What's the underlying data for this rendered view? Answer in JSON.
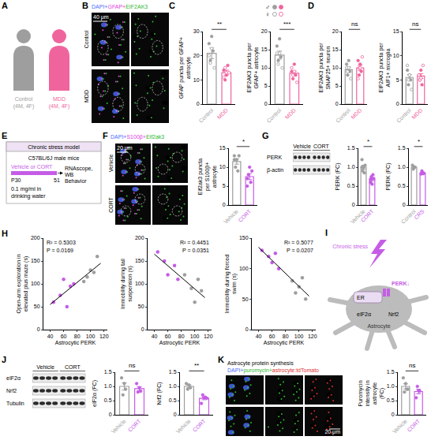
{
  "chart_data": [
    {
      "panel": "C",
      "type": "bar",
      "categories": [
        "Control",
        "MDD"
      ],
      "colors": [
        "#9e9e9e",
        "#f0649e"
      ],
      "values": [
        21,
        13
      ],
      "errors": [
        2.2,
        1.0
      ],
      "points": [
        {
          "male": [
            25,
            18,
            28,
            22
          ],
          "female": [
            15,
            20,
            17,
            23
          ]
        },
        {
          "male": [
            14,
            10,
            12,
            16
          ],
          "female": [
            13,
            11,
            15,
            13
          ]
        }
      ],
      "ylabel": "GFAP puncta per GFAP+ astrocyte",
      "ylim": [
        0,
        30
      ],
      "yticks": [
        0,
        10,
        20,
        30
      ],
      "significance": "**"
    },
    {
      "panel": "C",
      "type": "bar",
      "categories": [
        "Control",
        "MDD"
      ],
      "colors": [
        "#9e9e9e",
        "#f0649e"
      ],
      "values": [
        13.5,
        8.5
      ],
      "errors": [
        1.1,
        0.6
      ],
      "points": [
        {
          "male": [
            16,
            12,
            18,
            13
          ],
          "female": [
            10,
            14,
            11,
            14
          ]
        },
        {
          "male": [
            9,
            7,
            11,
            8
          ],
          "female": [
            6,
            10,
            8,
            9
          ]
        }
      ],
      "ylabel": "EIF2AK3 puncta per GFAP+ astrocyte",
      "ylim": [
        0,
        20
      ],
      "yticks": [
        0,
        5,
        10,
        15,
        20
      ],
      "significance": "***"
    },
    {
      "panel": "D",
      "type": "bar",
      "categories": [
        "Control",
        "MDD"
      ],
      "colors": [
        "#9e9e9e",
        "#f0649e"
      ],
      "values": [
        9.5,
        10
      ],
      "errors": [
        0.7,
        0.7
      ],
      "points": [
        {
          "male": [
            11,
            8,
            12,
            9
          ],
          "female": [
            7,
            10,
            9,
            10
          ]
        },
        {
          "male": [
            12,
            8,
            11,
            9
          ],
          "female": [
            13,
            7,
            10,
            10
          ]
        }
      ],
      "ylabel": "EIF2AK3 puncta per SNAP25+ neuron",
      "ylim": [
        0,
        20
      ],
      "yticks": [
        0,
        5,
        10,
        15,
        20
      ],
      "significance": "ns"
    },
    {
      "panel": "D",
      "type": "bar",
      "categories": [
        "Control",
        "MDD"
      ],
      "colors": [
        "#9e9e9e",
        "#f0649e"
      ],
      "values": [
        5.5,
        5.8
      ],
      "errors": [
        0.6,
        0.5
      ],
      "points": [
        {
          "male": [
            7,
            4,
            6,
            5
          ],
          "female": [
            3,
            8,
            5,
            6
          ]
        },
        {
          "male": [
            6,
            5,
            7,
            4
          ],
          "female": [
            8,
            6,
            5,
            5.4
          ]
        }
      ],
      "ylabel": "EIF2AK3 puncta per AIF1+ microglia",
      "ylim": [
        0,
        15
      ],
      "yticks": [
        0,
        5,
        10,
        15
      ],
      "significance": "ns"
    },
    {
      "panel": "F",
      "type": "bar",
      "categories": [
        "Vehicle",
        "CORT"
      ],
      "colors": [
        "#9e9e9e",
        "#c55ce6"
      ],
      "values": [
        11.5,
        7.5
      ],
      "errors": [
        0.7,
        0.8
      ],
      "points": [
        [
          13,
          10,
          12,
          9,
          13,
          12
        ],
        [
          5,
          8,
          10,
          6,
          9,
          7
        ]
      ],
      "ylabel": "Eif2ak3 puncta per S100β+ astrocyte",
      "ylim": [
        0,
        15
      ],
      "yticks": [
        0,
        5,
        10,
        15
      ],
      "significance": "*"
    },
    {
      "panel": "G",
      "type": "bar",
      "categories": [
        "Vehicle",
        "CORT"
      ],
      "colors": [
        "#9e9e9e",
        "#c55ce6"
      ],
      "values": [
        1.0,
        0.68
      ],
      "errors": [
        0.05,
        0.04
      ],
      "points": [
        [
          1.2,
          0.9,
          1.0,
          0.85,
          1.05,
          1.0
        ],
        [
          0.6,
          0.75,
          0.55,
          0.8,
          0.7,
          0.68
        ]
      ],
      "ylabel": "PERK (FC)",
      "ylim": [
        0,
        1.5
      ],
      "yticks": [
        0,
        0.5,
        {
          "value": 1,
          "label": "1.0"
        },
        1.5
      ],
      "significance": "*"
    },
    {
      "panel": "G",
      "type": "bar",
      "categories": [
        "Control",
        "CRS"
      ],
      "colors": [
        "#9e9e9e",
        "#c55ce6"
      ],
      "values": [
        1.0,
        0.85
      ],
      "errors": [
        0.02,
        0.02
      ],
      "points": [
        [
          1.05,
          0.95,
          1.0,
          1.0
        ],
        [
          0.82,
          0.9,
          0.85,
          0.83
        ]
      ],
      "ylabel": "PERK (FC)",
      "ylim": [
        0,
        1.5
      ],
      "yticks": [
        0,
        0.5,
        {
          "value": 1,
          "label": "1.0"
        },
        1.5
      ],
      "significance": "*"
    },
    {
      "panel": "H",
      "type": "scatter",
      "xlabel": "Astrocytic PERK",
      "ylabel": "Open-arm exploration in elevated plus maze (s)",
      "xlim": [
        30,
        125
      ],
      "xticks": [
        40,
        60,
        80,
        100,
        120
      ],
      "ylim": [
        0,
        200
      ],
      "yticks": [
        0,
        50,
        100,
        150,
        200
      ],
      "groups": [
        {
          "color": "#c55ce6",
          "x": [
            45,
            55,
            60,
            65,
            70,
            75
          ],
          "y": [
            60,
            75,
            110,
            50,
            95,
            100
          ]
        },
        {
          "color": "#9e9e9e",
          "x": [
            90,
            95,
            100,
            105,
            110
          ],
          "y": [
            105,
            115,
            130,
            125,
            160
          ]
        }
      ],
      "fit": {
        "x": [
          40,
          115
        ],
        "y": [
          55,
          145
        ]
      },
      "annotations": [
        "R² = 0.5303",
        "P = 0.0169"
      ]
    },
    {
      "panel": "H",
      "type": "scatter",
      "xlabel": "Astrocytic PERK",
      "ylabel": "Immobility during tail suspension (s)",
      "xlim": [
        30,
        125
      ],
      "xticks": [
        40,
        60,
        80,
        100,
        120
      ],
      "ylim": [
        0,
        200
      ],
      "yticks": [
        0,
        50,
        100,
        150,
        200
      ],
      "groups": [
        {
          "color": "#c55ce6",
          "x": [
            45,
            55,
            60,
            70,
            75
          ],
          "y": [
            170,
            150,
            120,
            140,
            110
          ]
        },
        {
          "color": "#9e9e9e",
          "x": [
            85,
            95,
            100,
            105,
            110
          ],
          "y": [
            120,
            90,
            60,
            110,
            85
          ]
        }
      ],
      "fit": {
        "x": [
          40,
          115
        ],
        "y": [
          165,
          70
        ]
      },
      "annotations": [
        "R² = 0.4451",
        "P = 0.0351"
      ]
    },
    {
      "panel": "H",
      "type": "scatter",
      "xlabel": "Astrocytic PERK",
      "ylabel": "Immobility during forced swim (s)",
      "xlim": [
        30,
        125
      ],
      "xticks": [
        40,
        60,
        80,
        100,
        120
      ],
      "ylim": [
        0,
        150
      ],
      "yticks": [
        0,
        50,
        100,
        150
      ],
      "groups": [
        {
          "color": "#c55ce6",
          "x": [
            45,
            55,
            60,
            65,
            70
          ],
          "y": [
            130,
            120,
            110,
            125,
            100
          ]
        },
        {
          "color": "#9e9e9e",
          "x": [
            90,
            95,
            100,
            105,
            110
          ],
          "y": [
            80,
            60,
            70,
            85,
            50
          ]
        }
      ],
      "fit": {
        "x": [
          40,
          115
        ],
        "y": [
          135,
          55
        ]
      },
      "annotations": [
        "R² = 0.5077",
        "P = 0.0207"
      ]
    },
    {
      "panel": "J",
      "type": "bar",
      "categories": [
        "Vehicle",
        "CORT"
      ],
      "colors": [
        "#9e9e9e",
        "#c55ce6"
      ],
      "values": [
        1.0,
        0.92
      ],
      "errors": [
        0.13,
        0.07
      ],
      "points": [
        [
          1.3,
          0.7,
          1.1,
          0.9
        ],
        [
          1.1,
          0.8,
          0.95,
          0.83
        ]
      ],
      "ylabel": "eIF2α (FC)",
      "ylim": [
        0,
        1.5
      ],
      "yticks": [
        0,
        0.5,
        {
          "value": 1,
          "label": "1.0"
        },
        1.5
      ],
      "significance": "ns"
    },
    {
      "panel": "J",
      "type": "bar",
      "categories": [
        "Vehicle",
        "CORT"
      ],
      "colors": [
        "#9e9e9e",
        "#c55ce6"
      ],
      "values": [
        1.0,
        0.58
      ],
      "errors": [
        0.05,
        0.05
      ],
      "points": [
        [
          1.1,
          0.9,
          1.05,
          0.95
        ],
        [
          0.4,
          0.7,
          0.6,
          0.62,
          0.58
        ]
      ],
      "ylabel": "Nrf2 (FC)",
      "ylim": [
        0,
        1.5
      ],
      "yticks": [
        0,
        0.5,
        {
          "value": 1,
          "label": "1.0"
        },
        1.5
      ],
      "significance": "**"
    },
    {
      "panel": "K",
      "type": "bar",
      "categories": [
        "Vehicle",
        "CORT"
      ],
      "colors": [
        "#9e9e9e",
        "#c55ce6"
      ],
      "values": [
        1.0,
        0.82
      ],
      "errors": [
        0.09,
        0.08
      ],
      "points": [
        [
          1.3,
          0.8,
          1.1,
          0.9,
          0.9
        ],
        [
          0.6,
          1.0,
          0.85,
          0.83
        ]
      ],
      "ylabel": "Puromycin intensity in astrocyte (FC)",
      "ylim": [
        0,
        1.5
      ],
      "yticks": [
        0,
        0.5,
        {
          "value": 1,
          "label": "1.0"
        },
        1.5
      ],
      "significance": "ns"
    }
  ],
  "figure": {
    "A": {
      "letter": "A",
      "groups": [
        {
          "label": "Control",
          "detail": "(4M, 4F)",
          "color": "#9e9e9e"
        },
        {
          "label": "MDD",
          "detail": "(4M, 4F)",
          "color": "#f0649e"
        }
      ]
    },
    "B": {
      "letter": "B",
      "stain": [
        {
          "text": "DAPI+",
          "color": "#4a6cff"
        },
        {
          "text": "GFAP+",
          "color": "#e040e0"
        },
        {
          "text": "EIF2AK3",
          "color": "#2fb82f"
        }
      ],
      "rows": [
        "Control",
        "MDD"
      ],
      "scale_bar": "40 μm"
    },
    "C": {
      "letter": "C",
      "sex_key": [
        {
          "symbol": "♂",
          "fill": true
        },
        {
          "symbol": "♀",
          "fill": false
        }
      ],
      "key_colors": [
        "#9e9e9e",
        "#f0649e"
      ]
    },
    "D": {
      "letter": "D"
    },
    "E": {
      "letter": "E",
      "title": "Chronic stress model",
      "strain": "C57BL/6J male mice",
      "treatment": "Vehicle or CORT",
      "dose": "0.1 mg/ml in drinking water",
      "start": "P30",
      "end": "51",
      "readouts": [
        "RNAscope, WB",
        "Behavior"
      ],
      "color": "#c55ce6"
    },
    "F": {
      "letter": "F",
      "stain": [
        {
          "text": "DAPI+",
          "color": "#4a6cff"
        },
        {
          "text": "S100β+",
          "color": "#e040e0"
        },
        {
          "text": "Eif2ak3",
          "color": "#2fb82f"
        }
      ],
      "rows": [
        "Vehicle",
        "CORT"
      ],
      "scale_bar": "20 μm"
    },
    "G": {
      "letter": "G",
      "lanes": [
        "Vehicle",
        "CORT"
      ],
      "bands": [
        "PERK",
        "β-actin"
      ]
    },
    "H": {
      "letter": "H"
    },
    "I": {
      "letter": "I",
      "stress": "Chronic stress",
      "perk": "PERK↓",
      "er": "ER",
      "eif": "eIF2α",
      "nrf": "Nrf2",
      "cell": "Astrocyte",
      "color": "#c55ce6"
    },
    "J": {
      "letter": "J",
      "lanes": [
        "Vehicle",
        "CORT"
      ],
      "bands": [
        "eIF2α",
        "Nrf2",
        "Tubulin"
      ]
    },
    "K": {
      "letter": "K",
      "title": "Astrocyte protein synthesis",
      "stain": [
        {
          "text": "DAPI+",
          "color": "#4a6cff"
        },
        {
          "text": "puromycin+",
          "color": "#2fb82f"
        },
        {
          "text": "astrocyte:tdTomato",
          "color": "#e03030"
        }
      ],
      "scale_bar": "20 μm"
    }
  }
}
